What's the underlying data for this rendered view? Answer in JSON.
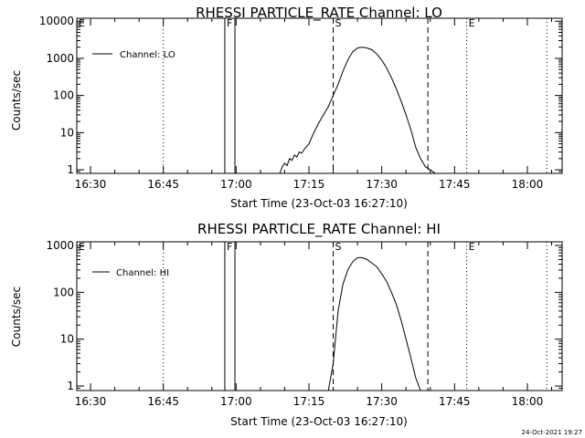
{
  "timestamp": "24-Oct-2021 19:27",
  "chart_data": [
    {
      "type": "line",
      "title": "RHESSI PARTICLE_RATE Channel: LO",
      "xlabel": "Start Time (23-Oct-03 16:27:10)",
      "ylabel": "Counts/sec",
      "y_scale": "log",
      "xlim": [
        "16:27:10",
        "18:07:10"
      ],
      "ylim": [
        0.8,
        12000
      ],
      "x_ticks": [
        "16:30",
        "16:45",
        "17:00",
        "17:15",
        "17:30",
        "17:45",
        "18:00"
      ],
      "y_ticks": [
        "1",
        "10",
        "100",
        "1000",
        "10000"
      ],
      "legend": {
        "position": "top-left",
        "entries": [
          "Channel: LO"
        ]
      },
      "markers": [
        {
          "label": "F",
          "times": [
            "16:57:40",
            "16:59:45"
          ],
          "style": "solid"
        },
        {
          "label": "S",
          "times": [
            "17:20:00"
          ],
          "style": "dashed"
        },
        {
          "label": "",
          "times": [
            "17:39:30"
          ],
          "style": "dashed"
        },
        {
          "label": "E",
          "times": [
            "17:47:30"
          ],
          "style": "dotted"
        },
        {
          "label": "",
          "times": [
            "16:45:00",
            "18:04:00"
          ],
          "style": "dotted"
        },
        {
          "label": "E",
          "times": [
            "16:27:10"
          ],
          "style": "none"
        }
      ],
      "series": [
        {
          "name": "Channel: LO",
          "x": [
            "17:09:00",
            "17:09:30",
            "17:10:00",
            "17:10:30",
            "17:11:00",
            "17:11:30",
            "17:12:00",
            "17:12:30",
            "17:13:00",
            "17:13:30",
            "17:14:00",
            "17:15:00",
            "17:16:00",
            "17:17:00",
            "17:18:00",
            "17:19:00",
            "17:20:00",
            "17:21:00",
            "17:22:00",
            "17:23:00",
            "17:24:00",
            "17:25:00",
            "17:26:00",
            "17:27:00",
            "17:28:00",
            "17:29:00",
            "17:30:00",
            "17:31:00",
            "17:32:00",
            "17:33:00",
            "17:34:00",
            "17:35:00",
            "17:36:00",
            "17:37:00",
            "17:38:00",
            "17:39:00",
            "17:40:00",
            "17:41:00"
          ],
          "y": [
            0.8,
            1.2,
            1.5,
            1.3,
            2.0,
            1.8,
            2.5,
            2.2,
            3.0,
            2.8,
            3.5,
            5,
            10,
            18,
            30,
            50,
            100,
            200,
            450,
            900,
            1500,
            1900,
            2000,
            1900,
            1700,
            1300,
            900,
            550,
            300,
            150,
            70,
            30,
            12,
            4,
            2,
            1.2,
            1.0,
            0.8
          ]
        }
      ]
    },
    {
      "type": "line",
      "title": "RHESSI PARTICLE_RATE Channel: HI",
      "xlabel": "Start Time (23-Oct-03 16:27:10)",
      "ylabel": "Counts/sec",
      "y_scale": "log",
      "xlim": [
        "16:27:10",
        "18:07:10"
      ],
      "ylim": [
        0.8,
        1200
      ],
      "x_ticks": [
        "16:30",
        "16:45",
        "17:00",
        "17:15",
        "17:30",
        "17:45",
        "18:00"
      ],
      "y_ticks": [
        "1",
        "10",
        "100",
        "1000"
      ],
      "legend": {
        "position": "top-left",
        "entries": [
          "Channel: HI"
        ]
      },
      "markers": [
        {
          "label": "F",
          "times": [
            "16:57:40",
            "16:59:45"
          ],
          "style": "solid"
        },
        {
          "label": "S",
          "times": [
            "17:20:00"
          ],
          "style": "dashed"
        },
        {
          "label": "",
          "times": [
            "17:39:30"
          ],
          "style": "dashed"
        },
        {
          "label": "E",
          "times": [
            "17:47:30"
          ],
          "style": "dotted"
        },
        {
          "label": "",
          "times": [
            "16:45:00",
            "18:04:00"
          ],
          "style": "dotted"
        },
        {
          "label": "E",
          "times": [
            "16:27:10"
          ],
          "style": "none"
        }
      ],
      "series": [
        {
          "name": "Channel: HI",
          "x": [
            "17:19:00",
            "17:20:00",
            "17:21:00",
            "17:22:00",
            "17:23:00",
            "17:24:00",
            "17:25:00",
            "17:26:00",
            "17:27:00",
            "17:28:00",
            "17:29:00",
            "17:30:00",
            "17:31:00",
            "17:32:00",
            "17:33:00",
            "17:34:00",
            "17:35:00",
            "17:36:00",
            "17:37:00",
            "17:38:00"
          ],
          "y": [
            0.8,
            3,
            40,
            150,
            300,
            450,
            550,
            550,
            500,
            420,
            350,
            250,
            170,
            100,
            55,
            25,
            10,
            4,
            1.5,
            0.8
          ]
        }
      ]
    }
  ]
}
